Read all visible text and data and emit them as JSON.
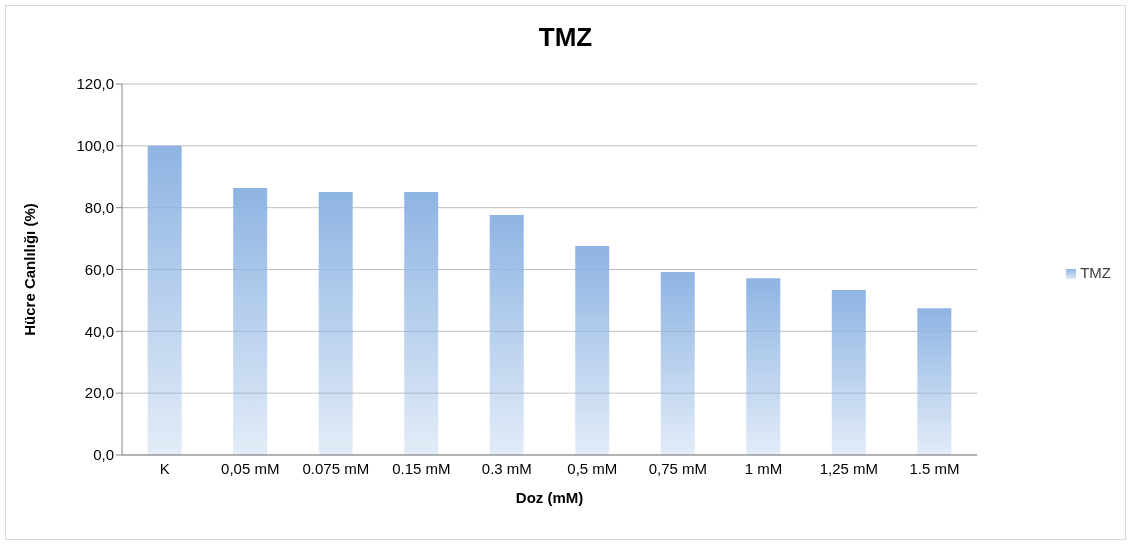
{
  "chart_data": {
    "type": "bar",
    "title": "TMZ",
    "xlabel": "Doz (mM)",
    "ylabel": "Hücre Canlılığı (%)",
    "categories": [
      "K",
      "0,05 mM",
      "0.075 mM",
      "0.15 mM",
      "0.3 mM",
      "0,5 mM",
      "0,75 mM",
      "1 mM",
      "1,25 mM",
      "1.5 mM"
    ],
    "series": [
      {
        "name": "TMZ",
        "color": "#8eb4e3",
        "values": [
          100,
          86.4,
          85.1,
          85.1,
          77.6,
          67.6,
          59.2,
          57.2,
          53.4,
          47.5
        ]
      }
    ],
    "ylim": [
      0,
      120
    ],
    "yticks": [
      {
        "value": 0,
        "label": "0,0"
      },
      {
        "value": 20,
        "label": "20,0"
      },
      {
        "value": 40,
        "label": "40,0"
      },
      {
        "value": 60,
        "label": "60,0"
      },
      {
        "value": 80,
        "label": "80,0"
      },
      {
        "value": 100,
        "label": "100,0"
      },
      {
        "value": 120,
        "label": "120,0"
      }
    ],
    "grid": "y",
    "legend": "right"
  }
}
